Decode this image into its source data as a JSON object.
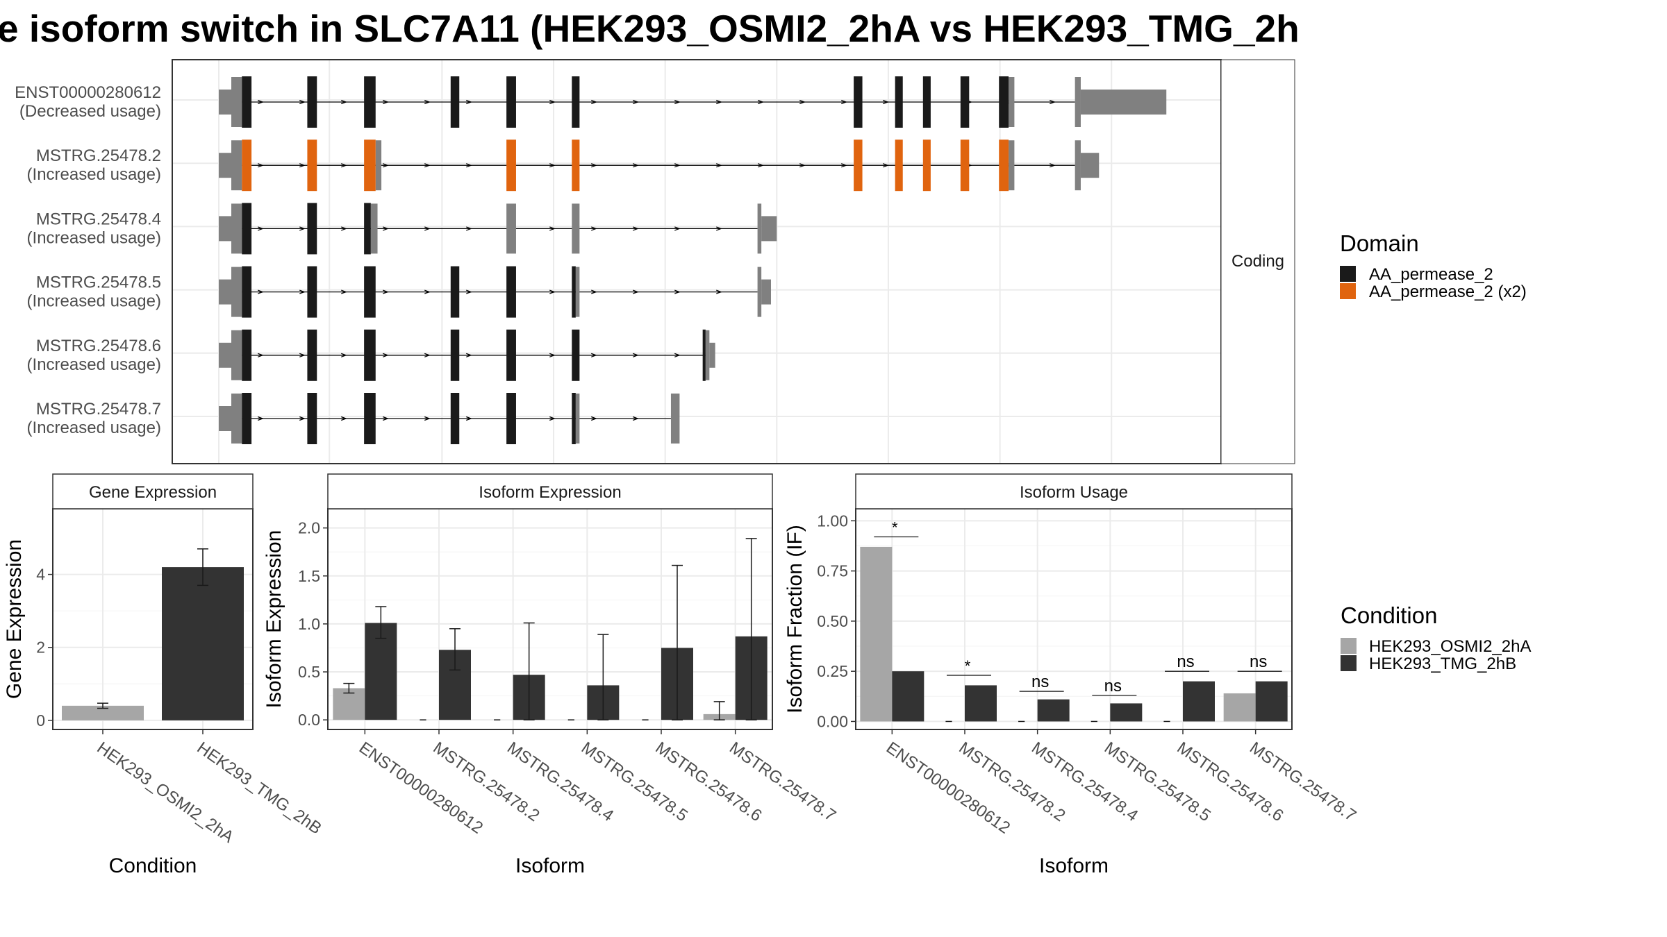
{
  "title": "e isoform switch in SLC7A11 (HEK293_OSMI2_2hA vs HEK293_TMG_2h",
  "colors": {
    "black_domain": "#1a1a1a",
    "orange_domain": "#e0640f",
    "noncoding": "#808080",
    "condA": "#a6a6a6",
    "condB": "#333333",
    "strip_bg": "#ffffff",
    "grid": "#ebebeb"
  },
  "chart_data": [
    {
      "type": "gene-structure",
      "facet_label": "Coding",
      "x_range": [
        0,
        100
      ],
      "isoforms": [
        {
          "name": "ENST00000280612",
          "usage": "(Decreased usage)",
          "utr": [
            [
              0,
              1.3,
              "thin"
            ],
            [
              1.3,
              2.4,
              "mid"
            ],
            [
              82.1,
              82.7,
              "mid"
            ],
            [
              89,
              89.6,
              "mid"
            ],
            [
              89.6,
              98.5,
              "wide"
            ]
          ],
          "exons": [
            [
              2.4,
              3.4,
              "black"
            ],
            [
              9.2,
              10.2,
              "black"
            ],
            [
              15.1,
              16.3,
              "black"
            ],
            [
              24.1,
              25.0,
              "black"
            ],
            [
              29.9,
              30.9,
              "black"
            ],
            [
              36.7,
              37.5,
              "black"
            ],
            [
              66.0,
              66.9,
              "black"
            ],
            [
              70.3,
              71.1,
              "black"
            ],
            [
              73.2,
              74.0,
              "black"
            ],
            [
              77.1,
              78.0,
              "black"
            ],
            [
              81.1,
              82.1,
              "black"
            ]
          ],
          "intron": [
            2.4,
            89
          ]
        },
        {
          "name": "MSTRG.25478.2",
          "usage": "(Increased usage)",
          "utr": [
            [
              0,
              1.3,
              "thin"
            ],
            [
              1.3,
              2.4,
              "mid"
            ],
            [
              16.3,
              16.9,
              "mid"
            ],
            [
              82.1,
              82.7,
              "mid"
            ],
            [
              89,
              89.6,
              "mid"
            ],
            [
              89.6,
              91.5,
              "wide2"
            ]
          ],
          "exons": [
            [
              2.4,
              3.4,
              "orange"
            ],
            [
              9.2,
              10.2,
              "orange"
            ],
            [
              15.1,
              16.3,
              "orange"
            ],
            [
              29.9,
              30.9,
              "orange"
            ],
            [
              36.7,
              37.5,
              "orange"
            ],
            [
              66.0,
              66.9,
              "orange"
            ],
            [
              70.3,
              71.1,
              "orange"
            ],
            [
              73.2,
              74.0,
              "orange"
            ],
            [
              77.1,
              78.0,
              "orange"
            ],
            [
              81.1,
              82.1,
              "orange"
            ]
          ],
          "intron": [
            2.4,
            89
          ]
        },
        {
          "name": "MSTRG.25478.4",
          "usage": "(Increased usage)",
          "utr": [
            [
              0,
              1.3,
              "thin"
            ],
            [
              1.3,
              2.4,
              "mid"
            ],
            [
              15.8,
              16.5,
              "mid"
            ],
            [
              29.9,
              30.9,
              "mid"
            ],
            [
              36.7,
              37.5,
              "mid"
            ],
            [
              56.0,
              56.4,
              "mid"
            ],
            [
              56.4,
              58.0,
              "wide2"
            ]
          ],
          "exons": [
            [
              2.4,
              3.4,
              "black"
            ],
            [
              9.2,
              10.2,
              "black"
            ],
            [
              15.1,
              15.8,
              "black"
            ]
          ],
          "intron": [
            2.4,
            56.0
          ]
        },
        {
          "name": "MSTRG.25478.5",
          "usage": "(Increased usage)",
          "utr": [
            [
              0,
              1.3,
              "thin"
            ],
            [
              1.3,
              2.4,
              "mid"
            ],
            [
              37.1,
              37.5,
              "mid"
            ],
            [
              56.0,
              56.4,
              "mid"
            ],
            [
              56.4,
              57.4,
              "wide2"
            ]
          ],
          "exons": [
            [
              2.4,
              3.4,
              "black"
            ],
            [
              9.2,
              10.2,
              "black"
            ],
            [
              15.1,
              16.3,
              "black"
            ],
            [
              24.1,
              25.0,
              "black"
            ],
            [
              29.9,
              30.9,
              "black"
            ],
            [
              36.7,
              37.1,
              "black"
            ]
          ],
          "intron": [
            2.4,
            56.0
          ]
        },
        {
          "name": "MSTRG.25478.6",
          "usage": "(Increased usage)",
          "utr": [
            [
              0,
              1.3,
              "thin"
            ],
            [
              1.3,
              2.4,
              "mid"
            ],
            [
              50.6,
              51.0,
              "mid"
            ],
            [
              51.0,
              51.6,
              "wide2"
            ]
          ],
          "exons": [
            [
              2.4,
              3.4,
              "black"
            ],
            [
              9.2,
              10.2,
              "black"
            ],
            [
              15.1,
              16.3,
              "black"
            ],
            [
              24.1,
              25.0,
              "black"
            ],
            [
              29.9,
              30.9,
              "black"
            ],
            [
              36.7,
              37.5,
              "black"
            ],
            [
              50.3,
              50.6,
              "black"
            ]
          ],
          "intron": [
            2.4,
            50.6
          ]
        },
        {
          "name": "MSTRG.25478.7",
          "usage": "(Increased usage)",
          "utr": [
            [
              0,
              1.3,
              "thin"
            ],
            [
              1.3,
              2.4,
              "mid"
            ],
            [
              37.1,
              37.5,
              "mid"
            ],
            [
              47.0,
              47.9,
              "mid"
            ]
          ],
          "exons": [
            [
              2.4,
              3.4,
              "black"
            ],
            [
              9.2,
              10.2,
              "black"
            ],
            [
              15.1,
              16.3,
              "black"
            ],
            [
              24.1,
              25.0,
              "black"
            ],
            [
              29.9,
              30.9,
              "black"
            ],
            [
              36.7,
              37.1,
              "black"
            ]
          ],
          "intron": [
            2.4,
            47.0
          ]
        }
      ],
      "legend": {
        "title": "Domain",
        "placement": "right",
        "entries": [
          {
            "label": "AA_permease_2",
            "color": "#1a1a1a"
          },
          {
            "label": "AA_permease_2 (x2)",
            "color": "#e0640f"
          }
        ]
      }
    },
    {
      "type": "bar",
      "strip": "Gene Expression",
      "xlabel": "Condition",
      "ylabel": "Gene Expression",
      "categories": [
        "HEK293_OSMI2_2hA",
        "HEK293_TMG_2hB"
      ],
      "values": [
        0.4,
        4.2
      ],
      "errors": [
        [
          0.33,
          0.47
        ],
        [
          3.7,
          4.7
        ]
      ],
      "ylim": [
        -0.25,
        5.8
      ],
      "yticks": [
        0,
        2,
        4
      ],
      "ytick_labels": [
        "0",
        "2",
        "4"
      ],
      "grid": true
    },
    {
      "type": "bar",
      "strip": "Isoform Expression",
      "xlabel": "Isoform",
      "ylabel": "Isoform Expression",
      "categories": [
        "ENST00000280612",
        "MSTRG.25478.2",
        "MSTRG.25478.4",
        "MSTRG.25478.5",
        "MSTRG.25478.6",
        "MSTRG.25478.7"
      ],
      "series": [
        {
          "values": [
            0.33,
            0.0,
            0.0,
            0.0,
            0.0,
            0.06
          ],
          "errors": [
            [
              0.28,
              0.38
            ],
            [
              0,
              0
            ],
            [
              0,
              0
            ],
            [
              0,
              0
            ],
            [
              0,
              0
            ],
            [
              0.0,
              0.19
            ]
          ]
        },
        {
          "values": [
            1.01,
            0.73,
            0.47,
            0.36,
            0.75,
            0.87
          ],
          "errors": [
            [
              0.85,
              1.18
            ],
            [
              0.52,
              0.95
            ],
            [
              0.0,
              1.01
            ],
            [
              0.0,
              0.89
            ],
            [
              0.0,
              1.61
            ],
            [
              0.0,
              1.89
            ]
          ]
        }
      ],
      "ylim": [
        -0.1,
        2.2
      ],
      "yticks": [
        0.0,
        0.5,
        1.0,
        1.5,
        2.0
      ],
      "ytick_labels": [
        "0.0",
        "0.5",
        "1.0",
        "1.5",
        "2.0"
      ],
      "grid": true
    },
    {
      "type": "bar",
      "strip": "Isoform Usage",
      "xlabel": "Isoform",
      "ylabel": "Isoform Fraction (IF)",
      "categories": [
        "ENST00000280612",
        "MSTRG.25478.2",
        "MSTRG.25478.4",
        "MSTRG.25478.5",
        "MSTRG.25478.6",
        "MSTRG.25478.7"
      ],
      "series": [
        {
          "values": [
            0.87,
            0.0,
            0.0,
            0.0,
            0.0,
            0.14
          ]
        },
        {
          "values": [
            0.25,
            0.18,
            0.11,
            0.09,
            0.2,
            0.2
          ]
        }
      ],
      "significance": [
        "*",
        "*",
        "ns",
        "ns",
        "ns",
        "ns"
      ],
      "sig_y": [
        0.92,
        0.23,
        0.15,
        0.13,
        0.25,
        0.25
      ],
      "ylim": [
        -0.04,
        1.06
      ],
      "yticks": [
        0.0,
        0.25,
        0.5,
        0.75,
        1.0
      ],
      "ytick_labels": [
        "0.00",
        "0.25",
        "0.50",
        "0.75",
        "1.00"
      ],
      "grid": true
    },
    {
      "type": "legend",
      "title": "Condition",
      "entries": [
        {
          "label": "HEK293_OSMI2_2hA",
          "color": "#a6a6a6"
        },
        {
          "label": "HEK293_TMG_2hB",
          "color": "#333333"
        }
      ]
    }
  ]
}
